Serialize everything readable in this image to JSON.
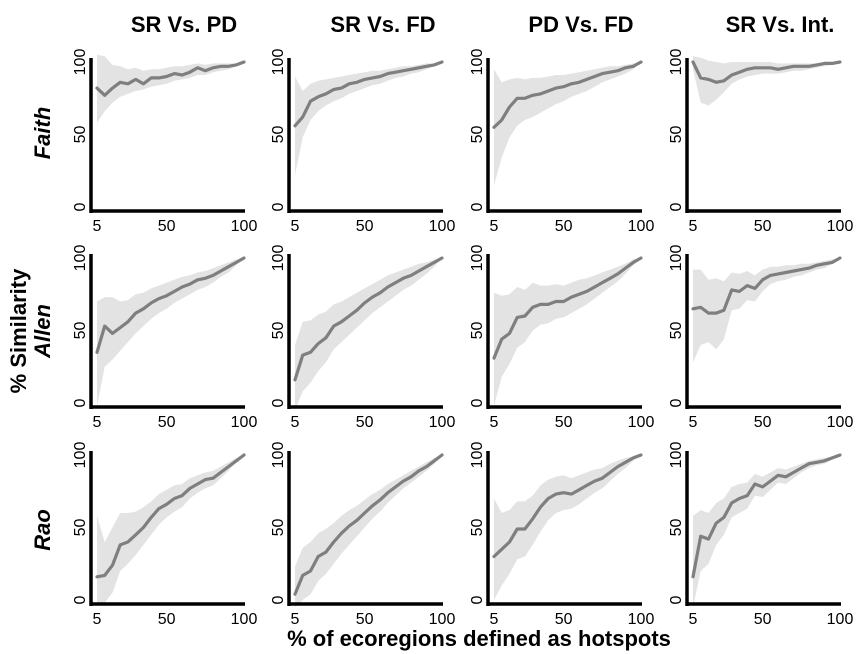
{
  "figure": {
    "column_titles": [
      "SR Vs. PD",
      "SR Vs. FD",
      "PD Vs. FD",
      "SR Vs. Int."
    ],
    "row_labels": [
      "Faith",
      "Allen",
      "Rao"
    ],
    "ylabel": "% Similarity",
    "xlabel": "% of ecoregions defined as hotspots"
  },
  "chart_data": {
    "type": "line",
    "x": [
      5,
      10,
      15,
      20,
      25,
      30,
      35,
      40,
      45,
      50,
      55,
      60,
      65,
      70,
      75,
      80,
      85,
      90,
      95,
      100
    ],
    "x_ticks": [
      5,
      50,
      100
    ],
    "y_ticks": [
      0,
      50,
      100
    ],
    "xlim": [
      5,
      100
    ],
    "ylim": [
      0,
      100
    ],
    "xlabel": "% of ecoregions defined as hotspots",
    "ylabel": "% Similarity",
    "colors": {
      "mean_line": "#7f7f7f",
      "band": "#e3e3e3",
      "axis": "#000000"
    },
    "panels": [
      {
        "row": "Faith",
        "column": "SR Vs. PD",
        "mean": [
          82,
          77,
          82,
          86,
          85,
          88,
          85,
          89,
          89,
          90,
          92,
          91,
          93,
          96,
          94,
          96,
          97,
          97,
          98,
          100
        ],
        "lower": [
          58,
          66,
          72,
          76,
          78,
          80,
          81,
          83,
          84,
          85,
          87,
          88,
          89,
          91,
          91,
          93,
          94,
          95,
          97,
          100
        ],
        "upper": [
          105,
          104,
          98,
          97,
          95,
          96,
          94,
          95,
          95,
          96,
          97,
          97,
          98,
          99,
          98,
          99,
          99,
          99,
          99,
          100
        ]
      },
      {
        "row": "Faith",
        "column": "SR Vs. FD",
        "mean": [
          56,
          62,
          73,
          76,
          78,
          81,
          82,
          85,
          86,
          88,
          89,
          90,
          92,
          93,
          94,
          95,
          96,
          97,
          98,
          100
        ],
        "lower": [
          22,
          48,
          60,
          66,
          70,
          73,
          75,
          78,
          80,
          82,
          84,
          85,
          87,
          89,
          90,
          92,
          93,
          95,
          97,
          100
        ],
        "upper": [
          90,
          80,
          85,
          87,
          88,
          89,
          90,
          91,
          92,
          93,
          94,
          94,
          95,
          96,
          97,
          97,
          98,
          99,
          99,
          100
        ]
      },
      {
        "row": "Faith",
        "column": "PD Vs. FD",
        "mean": [
          55,
          60,
          69,
          75,
          75,
          77,
          78,
          80,
          82,
          83,
          85,
          86,
          88,
          90,
          92,
          93,
          94,
          96,
          97,
          100
        ],
        "lower": [
          15,
          34,
          48,
          56,
          60,
          62,
          65,
          68,
          71,
          73,
          76,
          78,
          80,
          83,
          86,
          88,
          90,
          92,
          95,
          100
        ],
        "upper": [
          95,
          86,
          88,
          89,
          88,
          89,
          89,
          90,
          91,
          91,
          92,
          93,
          94,
          95,
          96,
          97,
          97,
          98,
          99,
          100
        ]
      },
      {
        "row": "Faith",
        "column": "SR Vs. Int.",
        "mean": [
          100,
          89,
          88,
          86,
          87,
          91,
          93,
          95,
          96,
          96,
          96,
          95,
          96,
          97,
          97,
          97,
          98,
          99,
          99,
          100
        ],
        "lower": [
          95,
          72,
          70,
          74,
          79,
          85,
          88,
          90,
          91,
          92,
          92,
          92,
          93,
          94,
          94,
          95,
          96,
          97,
          98,
          100
        ],
        "upper": [
          104,
          103,
          101,
          100,
          99,
          100,
          100,
          100,
          100,
          100,
          100,
          99,
          99,
          99,
          99,
          99,
          99,
          100,
          100,
          100
        ]
      },
      {
        "row": "Allen",
        "column": "SR Vs. PD",
        "mean": [
          35,
          53,
          48,
          52,
          56,
          62,
          65,
          69,
          72,
          74,
          77,
          80,
          82,
          85,
          86,
          88,
          91,
          94,
          97,
          100
        ],
        "lower": [
          -2,
          25,
          30,
          36,
          42,
          48,
          53,
          58,
          62,
          65,
          69,
          72,
          75,
          78,
          80,
          83,
          87,
          90,
          95,
          100
        ],
        "upper": [
          70,
          73,
          73,
          70,
          71,
          75,
          76,
          79,
          81,
          83,
          85,
          87,
          88,
          90,
          91,
          93,
          95,
          97,
          99,
          100
        ]
      },
      {
        "row": "Allen",
        "column": "SR Vs. FD",
        "mean": [
          16,
          33,
          35,
          41,
          45,
          53,
          56,
          60,
          64,
          69,
          73,
          76,
          80,
          83,
          86,
          88,
          91,
          94,
          97,
          100
        ],
        "lower": [
          -5,
          8,
          14,
          22,
          28,
          37,
          42,
          47,
          52,
          57,
          62,
          66,
          70,
          74,
          78,
          81,
          85,
          89,
          94,
          100
        ],
        "upper": [
          40,
          56,
          57,
          61,
          63,
          68,
          70,
          73,
          76,
          79,
          82,
          85,
          88,
          90,
          92,
          94,
          96,
          97,
          99,
          100
        ]
      },
      {
        "row": "Allen",
        "column": "PD Vs. FD",
        "mean": [
          31,
          44,
          48,
          59,
          60,
          66,
          68,
          68,
          70,
          70,
          73,
          75,
          77,
          80,
          83,
          86,
          89,
          93,
          97,
          100
        ],
        "lower": [
          -2,
          18,
          27,
          38,
          42,
          50,
          54,
          55,
          58,
          59,
          62,
          65,
          68,
          72,
          76,
          80,
          84,
          89,
          95,
          100
        ],
        "upper": [
          76,
          74,
          75,
          80,
          78,
          83,
          81,
          81,
          82,
          81,
          83,
          85,
          86,
          88,
          90,
          92,
          94,
          96,
          99,
          100
        ]
      },
      {
        "row": "Allen",
        "column": "SR Vs. Int.",
        "mean": [
          65,
          66,
          62,
          62,
          64,
          78,
          77,
          81,
          79,
          85,
          88,
          89,
          90,
          91,
          92,
          93,
          95,
          96,
          97,
          100
        ],
        "lower": [
          28,
          40,
          42,
          37,
          44,
          64,
          65,
          71,
          70,
          77,
          82,
          84,
          85,
          87,
          88,
          90,
          92,
          93,
          96,
          100
        ],
        "upper": [
          92,
          92,
          85,
          86,
          84,
          90,
          89,
          91,
          88,
          92,
          94,
          94,
          95,
          95,
          96,
          96,
          97,
          98,
          99,
          100
        ]
      },
      {
        "row": "Rao",
        "column": "SR Vs. PD",
        "mean": [
          16,
          17,
          24,
          38,
          40,
          45,
          50,
          57,
          63,
          66,
          70,
          72,
          77,
          80,
          83,
          84,
          88,
          92,
          96,
          100
        ],
        "lower": [
          -2,
          -2,
          5,
          20,
          25,
          31,
          38,
          45,
          52,
          57,
          61,
          64,
          70,
          74,
          77,
          79,
          84,
          89,
          95,
          100
        ],
        "upper": [
          58,
          40,
          50,
          60,
          60,
          61,
          64,
          68,
          73,
          76,
          79,
          80,
          84,
          86,
          88,
          89,
          92,
          95,
          98,
          100
        ]
      },
      {
        "row": "Rao",
        "column": "SR Vs. FD",
        "mean": [
          4,
          17,
          20,
          30,
          33,
          40,
          46,
          51,
          55,
          60,
          65,
          69,
          74,
          78,
          82,
          85,
          89,
          92,
          96,
          100
        ],
        "lower": [
          -5,
          0,
          4,
          13,
          18,
          25,
          32,
          38,
          44,
          50,
          56,
          61,
          67,
          72,
          77,
          81,
          85,
          89,
          94,
          100
        ],
        "upper": [
          23,
          36,
          40,
          46,
          49,
          53,
          58,
          62,
          65,
          69,
          73,
          76,
          80,
          83,
          86,
          89,
          92,
          95,
          98,
          100
        ]
      },
      {
        "row": "Rao",
        "column": "PD Vs. FD",
        "mean": [
          30,
          35,
          40,
          49,
          49,
          56,
          64,
          70,
          73,
          74,
          73,
          76,
          79,
          82,
          84,
          88,
          92,
          95,
          98,
          100
        ],
        "lower": [
          0,
          10,
          18,
          28,
          30,
          38,
          47,
          55,
          60,
          62,
          63,
          66,
          70,
          74,
          77,
          82,
          87,
          91,
          96,
          100
        ],
        "upper": [
          70,
          60,
          62,
          68,
          68,
          72,
          79,
          83,
          85,
          86,
          84,
          86,
          88,
          90,
          91,
          94,
          96,
          98,
          99,
          100
        ]
      },
      {
        "row": "Rao",
        "column": "SR Vs. Int.",
        "mean": [
          16,
          44,
          42,
          53,
          57,
          67,
          70,
          72,
          80,
          78,
          82,
          86,
          85,
          88,
          91,
          94,
          95,
          96,
          98,
          100
        ],
        "lower": [
          -5,
          20,
          25,
          38,
          45,
          57,
          60,
          63,
          72,
          71,
          76,
          81,
          80,
          84,
          88,
          91,
          93,
          94,
          97,
          100
        ],
        "upper": [
          58,
          62,
          60,
          67,
          70,
          78,
          80,
          81,
          87,
          85,
          88,
          91,
          90,
          92,
          94,
          96,
          97,
          98,
          99,
          100
        ]
      }
    ]
  }
}
